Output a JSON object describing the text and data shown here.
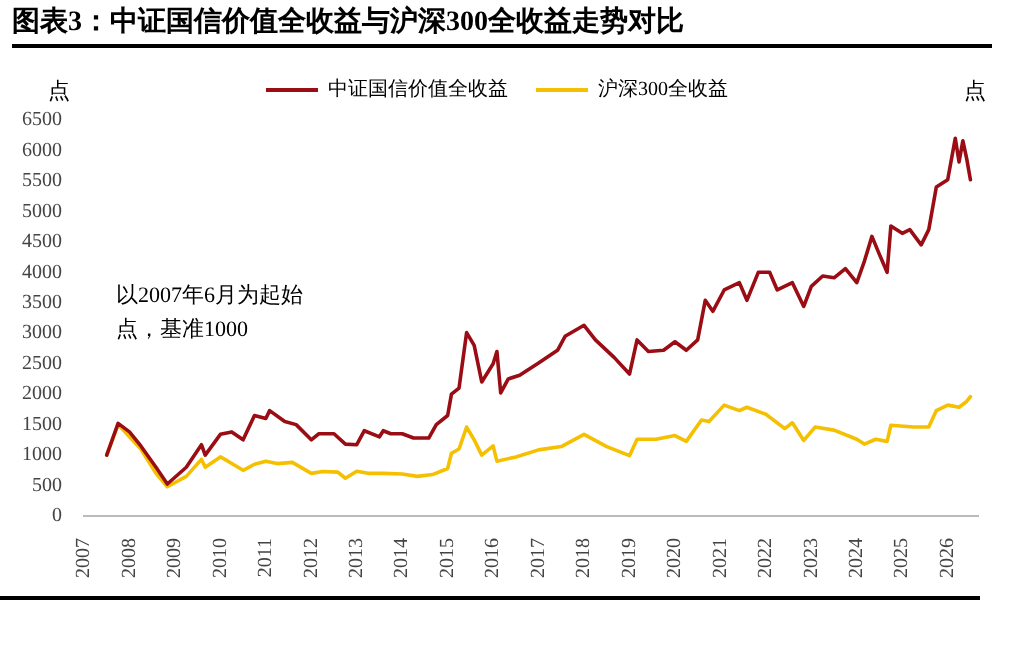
{
  "chart_data": {
    "type": "line",
    "title": "图表3：中证国信价值全收益与沪深300全收益走势对比",
    "ylabel": "点",
    "annotations": [
      "以2007年6月为起始点，基准1000",
      "点"
    ],
    "legend": "top",
    "grid": false,
    "marker": "none",
    "line_style": "solid",
    "xlim": [
      "2007-01",
      "2026-09"
    ],
    "xticks": [
      "2007",
      "2008",
      "2009",
      "2010",
      "2011",
      "2012",
      "2013",
      "2014",
      "2015",
      "2016",
      "2017",
      "2018",
      "2019",
      "2020",
      "2021",
      "2022",
      "2023",
      "2024",
      "2025",
      "2026"
    ],
    "ylim": [
      0,
      6500
    ],
    "yticks": [
      0,
      500,
      1000,
      1500,
      2000,
      2500,
      3000,
      3500,
      4000,
      4500,
      5000,
      5500,
      6000,
      6500
    ],
    "series": [
      {
        "name": "中证国信价值全收益",
        "color": "#9b0d14",
        "x": [
          "2007-07",
          "2007-10",
          "2008-01",
          "2008-04",
          "2008-08",
          "2008-11",
          "2009-04",
          "2009-08",
          "2009-09",
          "2010-01",
          "2010-04",
          "2010-07",
          "2010-10",
          "2011-01",
          "2011-02",
          "2011-06",
          "2011-09",
          "2012-01",
          "2012-03",
          "2012-07",
          "2012-10",
          "2013-01",
          "2013-03",
          "2013-07",
          "2013-08",
          "2013-10",
          "2014-01",
          "2014-04",
          "2014-08",
          "2014-10",
          "2015-01",
          "2015-02",
          "2015-04",
          "2015-06",
          "2015-08",
          "2015-10",
          "2016-01",
          "2016-02",
          "2016-03",
          "2016-05",
          "2016-08",
          "2017-01",
          "2017-06",
          "2017-08",
          "2018-01",
          "2018-04",
          "2018-09",
          "2019-01",
          "2019-03",
          "2019-06",
          "2019-10",
          "2020-01",
          "2020-04",
          "2020-07",
          "2020-09",
          "2020-11",
          "2021-02",
          "2021-06",
          "2021-08",
          "2021-11",
          "2022-02",
          "2022-04",
          "2022-08",
          "2022-11",
          "2023-01",
          "2023-04",
          "2023-07",
          "2023-10",
          "2024-01",
          "2024-03",
          "2024-05",
          "2024-07",
          "2024-09",
          "2024-10",
          "2025-01",
          "2025-03",
          "2025-06",
          "2025-08",
          "2025-10",
          "2026-01",
          "2026-03",
          "2026-04",
          "2026-05",
          "2026-06",
          "2026-07"
        ],
        "values": [
          1000,
          1520,
          1380,
          1150,
          800,
          525,
          800,
          1170,
          1000,
          1340,
          1380,
          1250,
          1650,
          1600,
          1730,
          1550,
          1500,
          1250,
          1350,
          1350,
          1180,
          1170,
          1400,
          1300,
          1400,
          1350,
          1350,
          1280,
          1280,
          1500,
          1650,
          2000,
          2100,
          3010,
          2800,
          2200,
          2500,
          2700,
          2020,
          2250,
          2310,
          2510,
          2720,
          2950,
          3130,
          2890,
          2600,
          2330,
          2890,
          2700,
          2720,
          2860,
          2720,
          2890,
          3540,
          3360,
          3710,
          3830,
          3540,
          4000,
          4000,
          3710,
          3830,
          3440,
          3770,
          3940,
          3910,
          4060,
          3830,
          4180,
          4590,
          4290,
          4000,
          4760,
          4640,
          4700,
          4450,
          4700,
          5400,
          5520,
          6200,
          5810,
          6160,
          5870,
          5520
        ]
      },
      {
        "name": "沪深300全收益",
        "color": "#f5c000",
        "x": [
          "2007-07",
          "2007-10",
          "2008-01",
          "2008-04",
          "2008-08",
          "2008-11",
          "2009-04",
          "2009-08",
          "2009-09",
          "2010-01",
          "2010-03",
          "2010-07",
          "2010-10",
          "2011-01",
          "2011-04",
          "2011-08",
          "2012-01",
          "2012-04",
          "2012-08",
          "2012-10",
          "2013-01",
          "2013-04",
          "2013-08",
          "2014-01",
          "2014-05",
          "2014-09",
          "2015-01",
          "2015-02",
          "2015-04",
          "2015-06",
          "2015-08",
          "2015-10",
          "2016-01",
          "2016-02",
          "2016-07",
          "2017-01",
          "2017-07",
          "2018-01",
          "2018-07",
          "2019-01",
          "2019-03",
          "2019-08",
          "2020-01",
          "2020-04",
          "2020-08",
          "2020-10",
          "2021-02",
          "2021-06",
          "2021-08",
          "2022-01",
          "2022-06",
          "2022-08",
          "2022-11",
          "2023-02",
          "2023-07",
          "2024-01",
          "2024-03",
          "2024-06",
          "2024-09",
          "2024-10",
          "2025-04",
          "2025-08",
          "2025-10",
          "2026-01",
          "2026-04",
          "2026-06",
          "2026-07"
        ],
        "values": [
          1000,
          1500,
          1300,
          1100,
          700,
          480,
          650,
          930,
          800,
          970,
          900,
          750,
          850,
          900,
          860,
          880,
          700,
          730,
          720,
          620,
          735,
          700,
          700,
          690,
          650,
          680,
          780,
          1030,
          1100,
          1460,
          1250,
          1000,
          1150,
          900,
          970,
          1085,
          1140,
          1340,
          1140,
          990,
          1260,
          1260,
          1320,
          1225,
          1575,
          1550,
          1820,
          1730,
          1785,
          1670,
          1435,
          1530,
          1240,
          1460,
          1410,
          1260,
          1180,
          1260,
          1225,
          1490,
          1460,
          1460,
          1730,
          1820,
          1785,
          1880,
          1960
        ]
      }
    ]
  }
}
